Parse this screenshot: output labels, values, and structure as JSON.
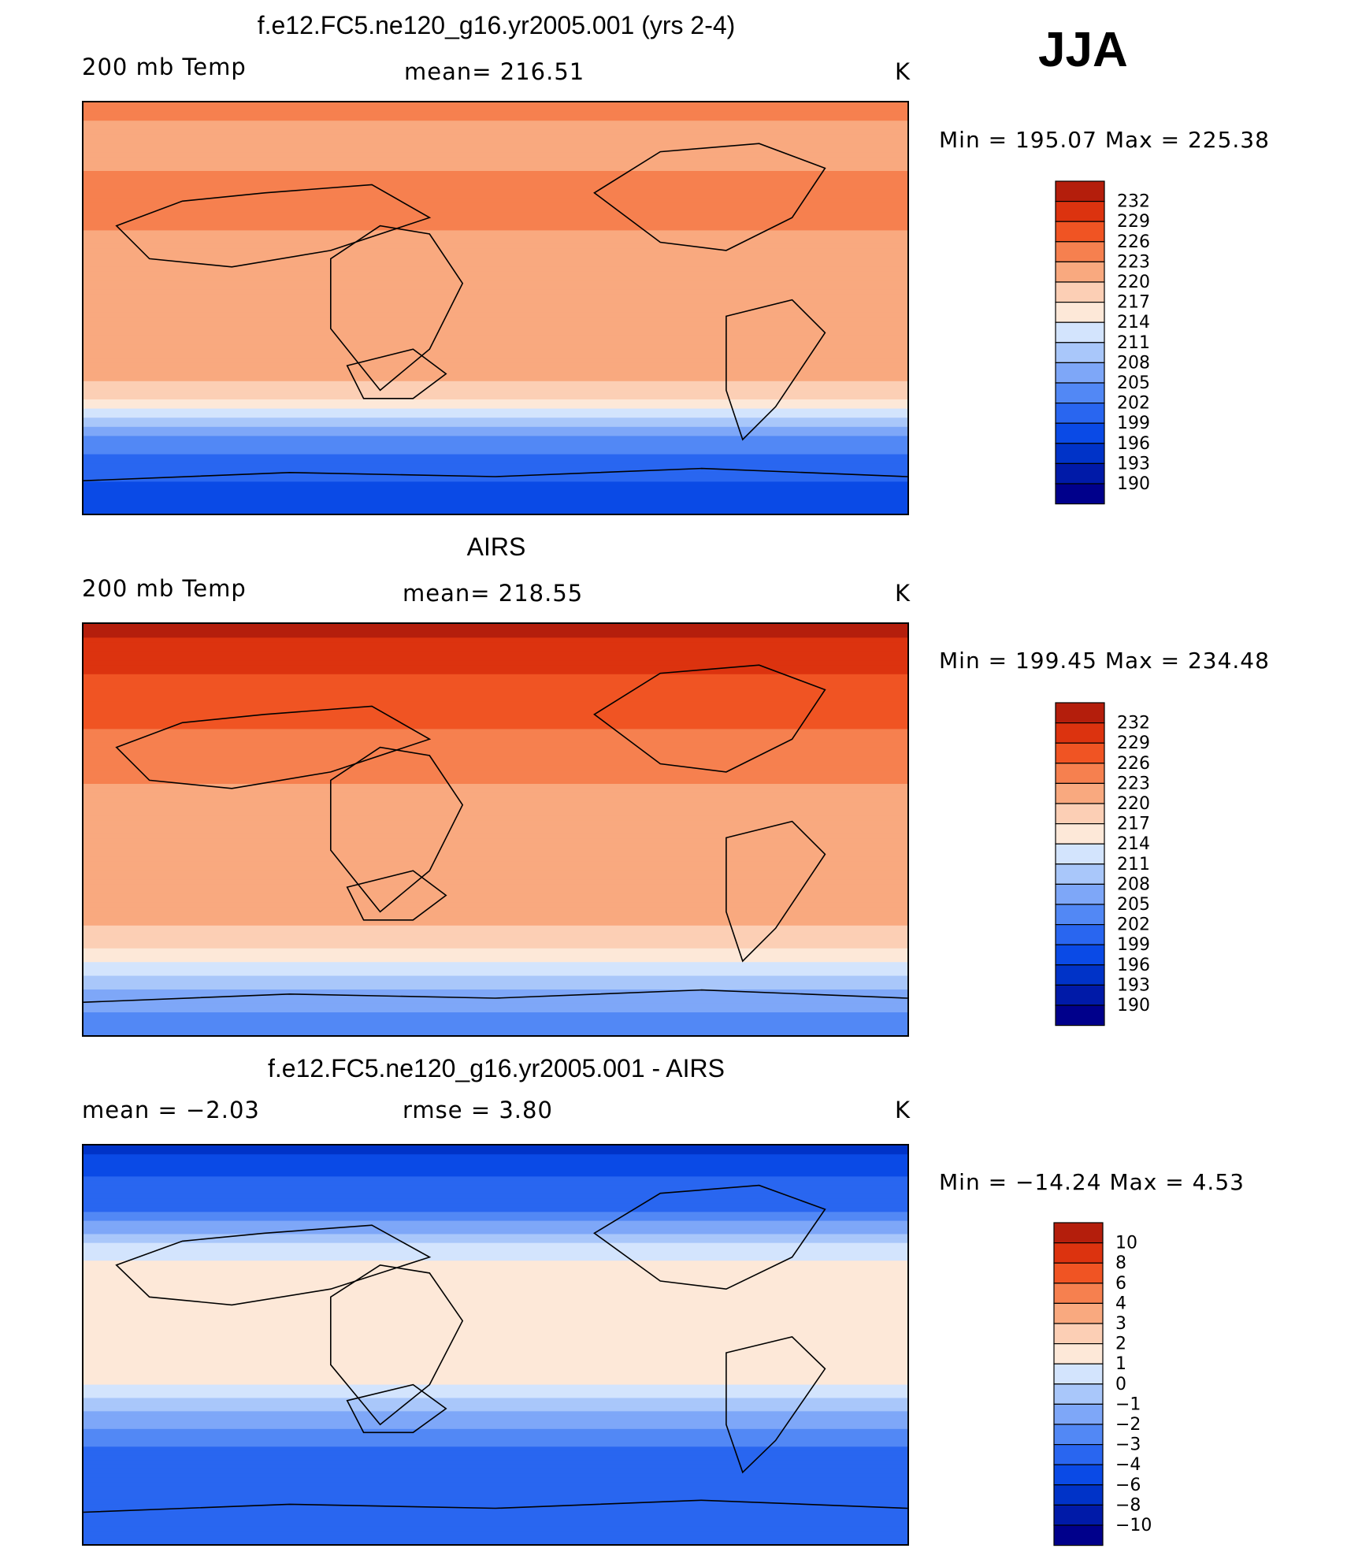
{
  "season": "JJA",
  "panels": [
    {
      "title": "f.e12.FC5.ne120_g16.yr2005.001 (yrs 2-4)",
      "left_label": "200 mb Temp",
      "center_label": "mean= 216.51",
      "units": "K",
      "minmax": "Min  =  195.07  Max  =  225.38",
      "colorbar_ticks": [
        "232",
        "229",
        "226",
        "223",
        "220",
        "217",
        "214",
        "211",
        "208",
        "205",
        "202",
        "199",
        "196",
        "193",
        "190"
      ]
    },
    {
      "title": "AIRS",
      "left_label": "200 mb Temp",
      "center_label": "mean= 218.55",
      "units": "K",
      "minmax": "Min  =  199.45  Max  =  234.48",
      "colorbar_ticks": [
        "232",
        "229",
        "226",
        "223",
        "220",
        "217",
        "214",
        "211",
        "208",
        "205",
        "202",
        "199",
        "196",
        "193",
        "190"
      ]
    },
    {
      "title": "f.e12.FC5.ne120_g16.yr2005.001 - AIRS",
      "left_label": "mean  =    −2.03",
      "center_label": "rmse  =     3.80",
      "units": "K",
      "minmax": "Min  =  −14.24  Max  =      4.53",
      "colorbar_ticks": [
        "10",
        "8",
        "6",
        "4",
        "3",
        "2",
        "1",
        "0",
        "−1",
        "−2",
        "−3",
        "−4",
        "−6",
        "−8",
        "−10"
      ]
    }
  ],
  "colors": {
    "temp_scale": [
      "#00008b",
      "#001aa8",
      "#0033c8",
      "#0a4ae6",
      "#2966f0",
      "#5288f5",
      "#7ea7f8",
      "#a9c7fa",
      "#d3e4fd",
      "#fde8d8",
      "#fccfb5",
      "#f9a97f",
      "#f6804f",
      "#f05423",
      "#dc330f",
      "#b41e0c",
      "#800000"
    ],
    "diff_scale": [
      "#00008b",
      "#001aa8",
      "#0033c8",
      "#0a4ae6",
      "#2966f0",
      "#5288f5",
      "#7ea7f8",
      "#a9c7fa",
      "#d3e4fd",
      "#fde8d8",
      "#fccfb5",
      "#f9a97f",
      "#f6804f",
      "#f05423",
      "#dc330f",
      "#b41e0c",
      "#800000"
    ]
  },
  "chart_data": [
    {
      "type": "heatmap",
      "title": "f.e12.FC5.ne120_g16.yr2005.001 (yrs 2-4)",
      "variable": "200 mb Temp",
      "units": "K",
      "mean": 216.51,
      "min": 195.07,
      "max": 225.38,
      "contour_levels": [
        190,
        193,
        196,
        199,
        202,
        205,
        208,
        211,
        214,
        217,
        220,
        223,
        226,
        229,
        232
      ],
      "zonal_profile": [
        {
          "lat": 90,
          "value": 221
        },
        {
          "lat": 75,
          "value": 219
        },
        {
          "lat": 60,
          "value": 220
        },
        {
          "lat": 45,
          "value": 222
        },
        {
          "lat": 30,
          "value": 219
        },
        {
          "lat": 15,
          "value": 218
        },
        {
          "lat": 0,
          "value": 218
        },
        {
          "lat": -15,
          "value": 218
        },
        {
          "lat": -30,
          "value": 218
        },
        {
          "lat": -40,
          "value": 214
        },
        {
          "lat": -50,
          "value": 206
        },
        {
          "lat": -60,
          "value": 200
        },
        {
          "lat": -75,
          "value": 196
        },
        {
          "lat": -90,
          "value": 195
        }
      ],
      "colormap": "blue-white-red"
    },
    {
      "type": "heatmap",
      "title": "AIRS",
      "variable": "200 mb Temp",
      "units": "K",
      "mean": 218.55,
      "min": 199.45,
      "max": 234.48,
      "contour_levels": [
        190,
        193,
        196,
        199,
        202,
        205,
        208,
        211,
        214,
        217,
        220,
        223,
        226,
        229,
        232
      ],
      "zonal_profile": [
        {
          "lat": 90,
          "value": 230
        },
        {
          "lat": 75,
          "value": 227
        },
        {
          "lat": 60,
          "value": 225
        },
        {
          "lat": 45,
          "value": 223
        },
        {
          "lat": 30,
          "value": 222
        },
        {
          "lat": 15,
          "value": 219
        },
        {
          "lat": 0,
          "value": 218
        },
        {
          "lat": -15,
          "value": 218
        },
        {
          "lat": -30,
          "value": 220
        },
        {
          "lat": -45,
          "value": 216
        },
        {
          "lat": -55,
          "value": 213
        },
        {
          "lat": -62,
          "value": 209
        },
        {
          "lat": -75,
          "value": 203
        },
        {
          "lat": -90,
          "value": 200
        }
      ],
      "colormap": "blue-white-red"
    },
    {
      "type": "heatmap",
      "title": "f.e12.FC5.ne120_g16.yr2005.001 - AIRS",
      "units": "K",
      "mean": -2.03,
      "rmse": 3.8,
      "min": -14.24,
      "max": 4.53,
      "contour_levels": [
        -10,
        -8,
        -6,
        -4,
        -3,
        -2,
        -1,
        0,
        1,
        2,
        3,
        4,
        6,
        8,
        10
      ],
      "zonal_profile": [
        {
          "lat": 90,
          "value": -9
        },
        {
          "lat": 75,
          "value": -6
        },
        {
          "lat": 60,
          "value": -4
        },
        {
          "lat": 45,
          "value": -1
        },
        {
          "lat": 30,
          "value": 1
        },
        {
          "lat": 15,
          "value": 0.5
        },
        {
          "lat": 0,
          "value": 0.5
        },
        {
          "lat": -15,
          "value": 0.5
        },
        {
          "lat": -30,
          "value": -2
        },
        {
          "lat": -45,
          "value": -4
        },
        {
          "lat": -60,
          "value": -6
        },
        {
          "lat": -75,
          "value": -5
        },
        {
          "lat": -90,
          "value": -5
        }
      ],
      "colormap": "blue-white-red"
    }
  ]
}
